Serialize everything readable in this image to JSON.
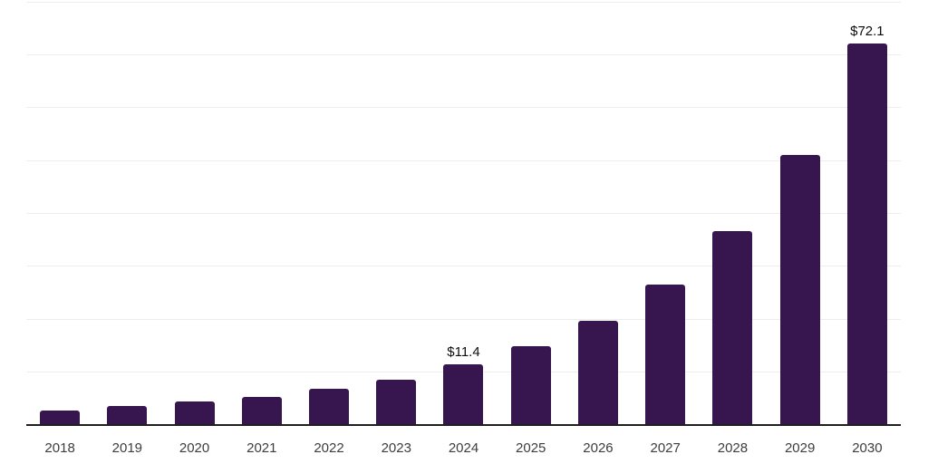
{
  "chart_data": {
    "type": "bar",
    "categories": [
      "2018",
      "2019",
      "2020",
      "2021",
      "2022",
      "2023",
      "2024",
      "2025",
      "2026",
      "2027",
      "2028",
      "2029",
      "2030"
    ],
    "values": [
      2.8,
      3.6,
      4.4,
      5.3,
      6.9,
      8.6,
      11.4,
      14.9,
      19.7,
      26.6,
      36.7,
      51.0,
      72.1
    ],
    "data_labels": [
      "",
      "",
      "",
      "",
      "",
      "",
      "$11.4",
      "",
      "",
      "",
      "",
      "",
      "$72.1"
    ],
    "title": "",
    "xlabel": "",
    "ylabel": "",
    "ylim": [
      0,
      80
    ],
    "gridline_step": 10,
    "grid": true,
    "legend_position": "none",
    "y_tick_labels_visible": false,
    "colors": {
      "bar": "#371650",
      "axis": "#1f1f1f",
      "gridline": "#ededed",
      "data_label": "#0d0d0d",
      "tick_label": "#3d3d3d",
      "background": "#ffffff"
    }
  }
}
